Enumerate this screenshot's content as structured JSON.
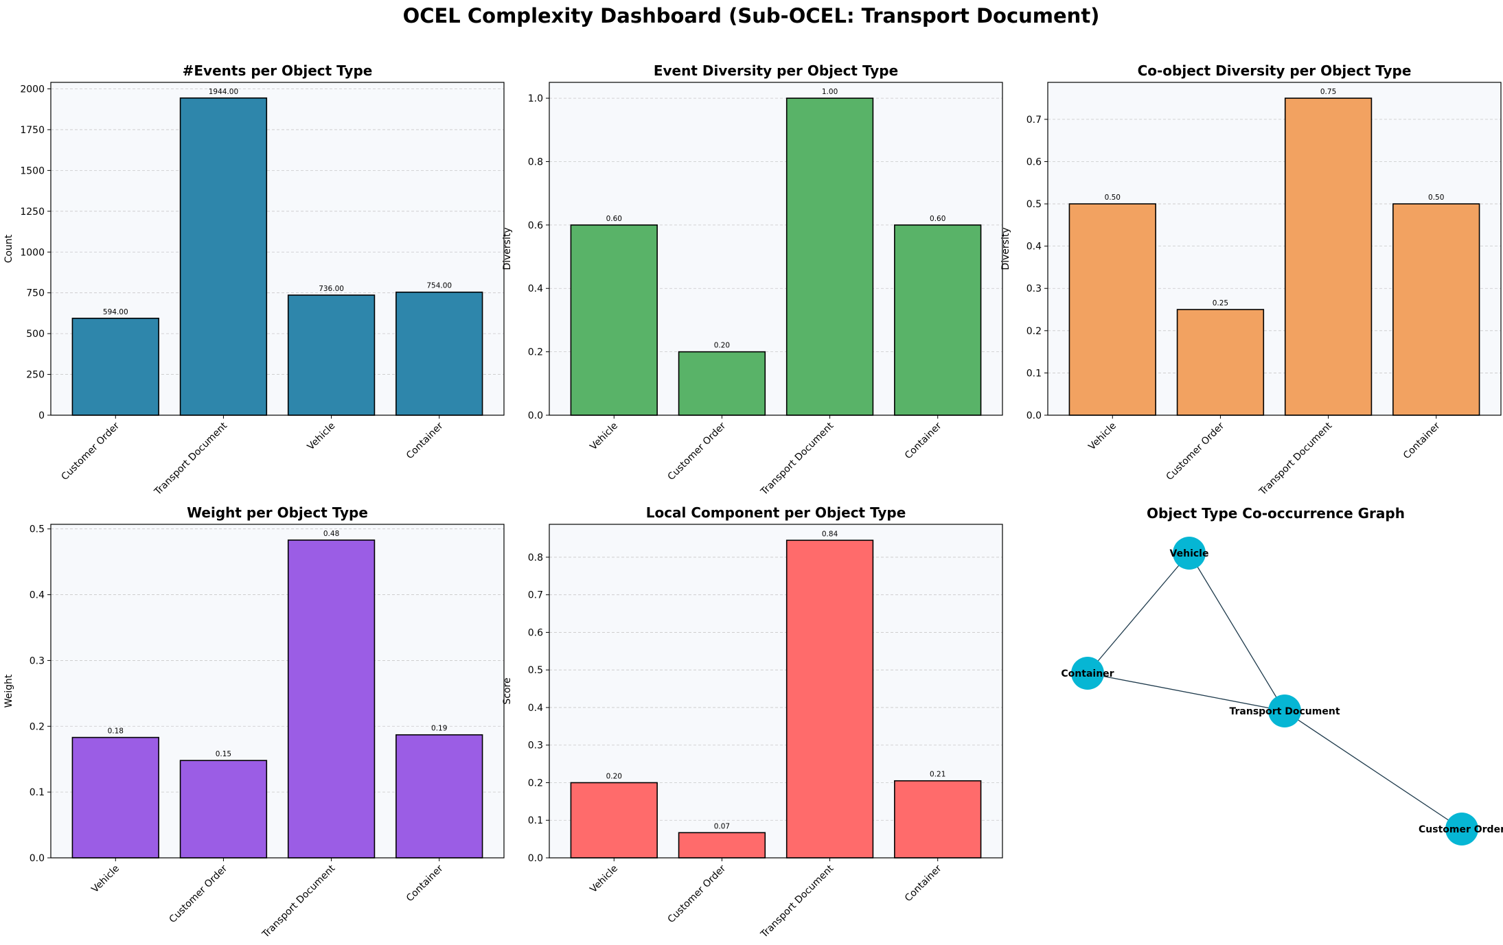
{
  "title": "OCEL Complexity Dashboard (Sub-OCEL: Transport Document)",
  "colors": {
    "events": "#2e86ab",
    "event_diversity": "#59b368",
    "coobject_diversity": "#f2a261",
    "weight": "#9b5de5",
    "local_component": "#ff6b6b",
    "node": "#06b6d4",
    "edge": "#1e3a4c",
    "plot_bg": "#f7f9fc"
  },
  "chart_data": [
    {
      "type": "bar",
      "title": "#Events per Object Type",
      "ylabel": "Count",
      "categories": [
        "Customer Order",
        "Transport Document",
        "Vehicle",
        "Container"
      ],
      "values": [
        594,
        1944,
        736,
        754
      ],
      "value_labels": [
        "594.00",
        "1944.00",
        "736.00",
        "754.00"
      ],
      "ylim": [
        0,
        2040
      ],
      "yticks": [
        0,
        250,
        500,
        750,
        1000,
        1250,
        1500,
        1750,
        2000
      ],
      "ytick_labels": [
        "0",
        "250",
        "500",
        "750",
        "1000",
        "1250",
        "1500",
        "1750",
        "2000"
      ],
      "grid": true,
      "color_key": "events"
    },
    {
      "type": "bar",
      "title": "Event Diversity per Object Type",
      "ylabel": "Diversity",
      "categories": [
        "Vehicle",
        "Customer Order",
        "Transport Document",
        "Container"
      ],
      "values": [
        0.6,
        0.2,
        1.0,
        0.6
      ],
      "value_labels": [
        "0.60",
        "0.20",
        "1.00",
        "0.60"
      ],
      "ylim": [
        0,
        1.05
      ],
      "yticks": [
        0,
        0.2,
        0.4,
        0.6,
        0.8,
        1.0
      ],
      "ytick_labels": [
        "0.0",
        "0.2",
        "0.4",
        "0.6",
        "0.8",
        "1.0"
      ],
      "grid": true,
      "color_key": "event_diversity"
    },
    {
      "type": "bar",
      "title": "Co-object Diversity per Object Type",
      "ylabel": "Diversity",
      "categories": [
        "Vehicle",
        "Customer Order",
        "Transport Document",
        "Container"
      ],
      "values": [
        0.5,
        0.25,
        0.75,
        0.5
      ],
      "value_labels": [
        "0.50",
        "0.25",
        "0.75",
        "0.50"
      ],
      "ylim": [
        0,
        0.7875
      ],
      "yticks": [
        0,
        0.1,
        0.2,
        0.3,
        0.4,
        0.5,
        0.6,
        0.7
      ],
      "ytick_labels": [
        "0.0",
        "0.1",
        "0.2",
        "0.3",
        "0.4",
        "0.5",
        "0.6",
        "0.7"
      ],
      "grid": true,
      "color_key": "coobject_diversity"
    },
    {
      "type": "bar",
      "title": "Weight per Object Type",
      "ylabel": "Weight",
      "categories": [
        "Vehicle",
        "Customer Order",
        "Transport Document",
        "Container"
      ],
      "values": [
        0.183,
        0.148,
        0.483,
        0.187
      ],
      "value_labels": [
        "0.18",
        "0.15",
        "0.48",
        "0.19"
      ],
      "ylim": [
        0,
        0.507
      ],
      "yticks": [
        0,
        0.1,
        0.2,
        0.3,
        0.4,
        0.5
      ],
      "ytick_labels": [
        "0.0",
        "0.1",
        "0.2",
        "0.3",
        "0.4",
        "0.5"
      ],
      "grid": true,
      "color_key": "weight"
    },
    {
      "type": "bar",
      "title": "Local Component per Object Type",
      "ylabel": "Score",
      "categories": [
        "Vehicle",
        "Customer Order",
        "Transport Document",
        "Container"
      ],
      "values": [
        0.2,
        0.067,
        0.845,
        0.205
      ],
      "value_labels": [
        "0.20",
        "0.07",
        "0.84",
        "0.21"
      ],
      "ylim": [
        0,
        0.8875
      ],
      "yticks": [
        0,
        0.1,
        0.2,
        0.3,
        0.4,
        0.5,
        0.6,
        0.7,
        0.8
      ],
      "ytick_labels": [
        "0.0",
        "0.1",
        "0.2",
        "0.3",
        "0.4",
        "0.5",
        "0.6",
        "0.7",
        "0.8"
      ],
      "grid": true,
      "color_key": "local_component"
    },
    {
      "type": "graph",
      "title": "Object Type Co-occurrence Graph",
      "nodes": [
        {
          "id": "Vehicle",
          "label": "Vehicle"
        },
        {
          "id": "Container",
          "label": "Container"
        },
        {
          "id": "Transport Document",
          "label": "Transport Document"
        },
        {
          "id": "Customer Order",
          "label": "Customer Order"
        }
      ],
      "edges": [
        [
          "Vehicle",
          "Container"
        ],
        [
          "Vehicle",
          "Transport Document"
        ],
        [
          "Container",
          "Transport Document"
        ],
        [
          "Transport Document",
          "Customer Order"
        ]
      ]
    }
  ]
}
